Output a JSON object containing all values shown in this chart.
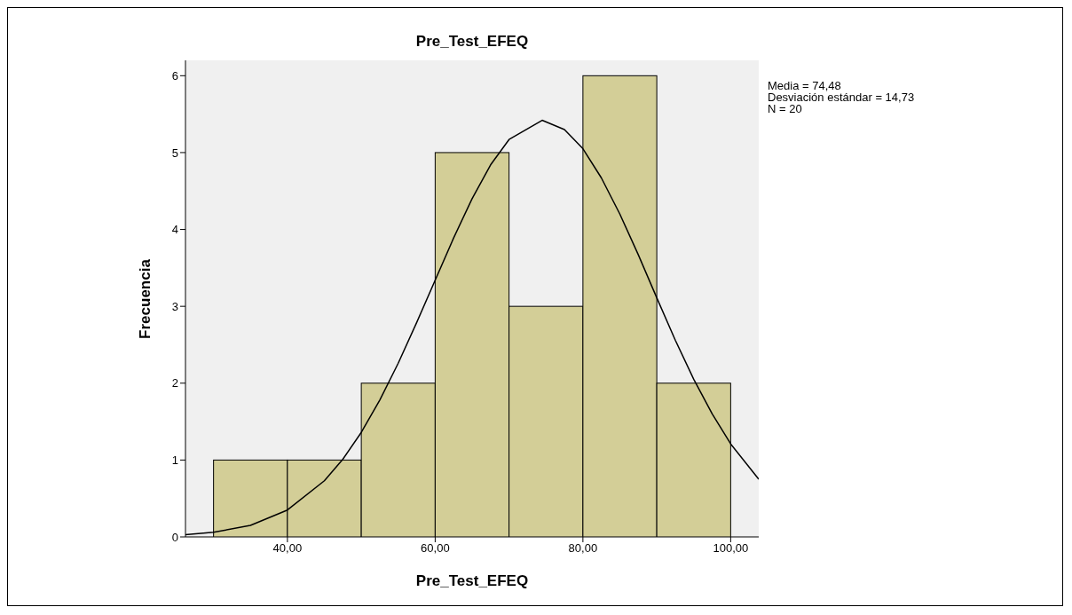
{
  "chart_data": {
    "type": "histogram",
    "title": "Pre_Test_EFEQ",
    "xlabel": "Pre_Test_EFEQ",
    "ylabel": "Frecuencia",
    "annotations": [
      "Media = 74,48",
      "Desviación estándar = 14,73",
      "N = 20"
    ],
    "xlim": [
      26.2,
      103.8
    ],
    "xticks": [
      {
        "value": 40,
        "label": "40,00"
      },
      {
        "value": 60,
        "label": "60,00"
      },
      {
        "value": 80,
        "label": "80,00"
      },
      {
        "value": 100,
        "label": "100,00"
      }
    ],
    "ylim": [
      0,
      6.2
    ],
    "yticks": [
      0,
      1,
      2,
      3,
      4,
      5,
      6
    ],
    "series": [
      {
        "color": "#d3ce97",
        "bins": [
          30,
          40,
          50,
          60,
          70,
          80,
          90,
          100
        ],
        "values": [
          1,
          1,
          2,
          5,
          3,
          6,
          2
        ]
      },
      {
        "type": "line",
        "color": "#000000",
        "x": [
          26.2,
          30,
          35,
          40,
          45,
          47.5,
          50,
          52.5,
          55,
          57.5,
          60,
          62.5,
          65,
          67.5,
          70,
          74.48,
          77.5,
          80,
          82.5,
          85,
          87.5,
          90,
          92.5,
          95,
          97.5,
          100,
          103.8
        ],
        "values": [
          0.03,
          0.06,
          0.15,
          0.35,
          0.73,
          1.01,
          1.36,
          1.78,
          2.26,
          2.79,
          3.34,
          3.89,
          4.4,
          4.84,
          5.17,
          5.42,
          5.3,
          5.05,
          4.67,
          4.2,
          3.67,
          3.11,
          2.56,
          2.05,
          1.6,
          1.21,
          0.75
        ]
      }
    ]
  }
}
